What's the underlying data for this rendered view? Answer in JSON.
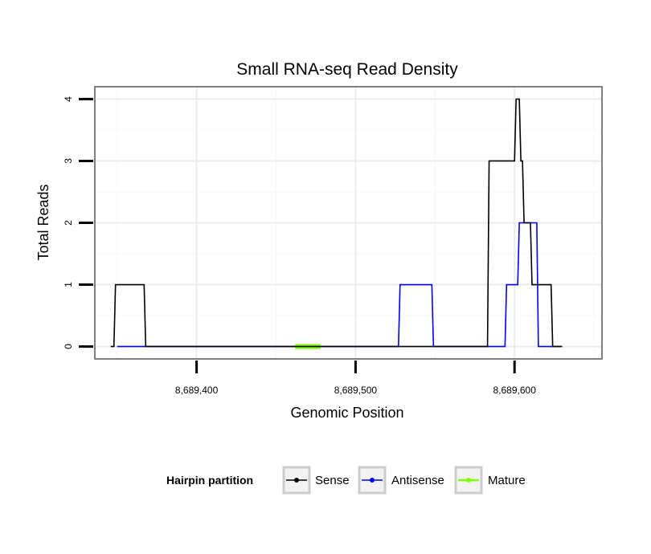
{
  "chart_data": {
    "type": "line",
    "title": "Small RNA-seq Read Density",
    "xlabel": "Genomic Position",
    "ylabel": "Total Reads",
    "xlim": [
      8689336,
      8689655
    ],
    "ylim": [
      -0.2,
      4.2
    ],
    "xticks": [
      8689400,
      8689500,
      8689600
    ],
    "xtick_labels": [
      "8,689,400",
      "8,689,500",
      "8,689,600"
    ],
    "yticks": [
      0,
      1,
      2,
      3,
      4
    ],
    "ytick_labels": [
      "0",
      "1",
      "2",
      "3",
      "4"
    ],
    "grid": true,
    "legend": {
      "title": "Hairpin partition",
      "position": "bottom",
      "entries": [
        {
          "label": "Sense",
          "color": "#000000"
        },
        {
          "label": "Antisense",
          "color": "#0000ff"
        },
        {
          "label": "Mature",
          "color": "#7fff00"
        }
      ]
    },
    "series": [
      {
        "name": "Antisense",
        "color": "#0000ff",
        "width": 1.6,
        "points": [
          [
            8689350,
            0
          ],
          [
            8689527,
            0
          ],
          [
            8689528,
            1
          ],
          [
            8689548,
            1
          ],
          [
            8689549,
            0
          ],
          [
            8689594,
            0
          ],
          [
            8689595,
            1
          ],
          [
            8689602,
            1
          ],
          [
            8689603,
            2
          ],
          [
            8689614,
            2
          ],
          [
            8689615,
            0
          ],
          [
            8689629,
            0
          ]
        ]
      },
      {
        "name": "Mature",
        "color": "#7fff00",
        "width": 6,
        "points": [
          [
            8689462,
            0
          ],
          [
            8689478,
            0
          ]
        ]
      },
      {
        "name": "Sense",
        "color": "#000000",
        "width": 1.6,
        "points": [
          [
            8689346,
            0
          ],
          [
            8689348,
            0
          ],
          [
            8689349,
            1
          ],
          [
            8689367,
            1
          ],
          [
            8689368,
            0
          ],
          [
            8689583,
            0
          ],
          [
            8689584,
            3
          ],
          [
            8689600,
            3
          ],
          [
            8689601,
            4
          ],
          [
            8689603,
            4
          ],
          [
            8689604,
            3
          ],
          [
            8689605,
            3
          ],
          [
            8689606,
            2
          ],
          [
            8689610,
            2
          ],
          [
            8689611,
            1
          ],
          [
            8689623,
            1
          ],
          [
            8689624,
            0
          ],
          [
            8689630,
            0
          ]
        ]
      }
    ]
  }
}
